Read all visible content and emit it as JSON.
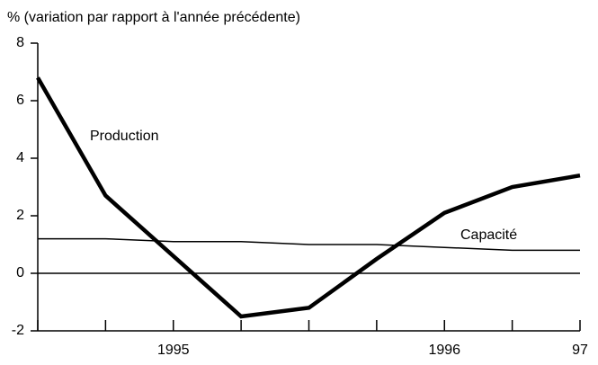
{
  "chart_data": {
    "type": "line",
    "ylabel": "% (variation par rapport à l'année précédente)",
    "categories": [
      null,
      null,
      "1995",
      null,
      null,
      null,
      "1996",
      null,
      "97"
    ],
    "series": [
      {
        "name": "Production",
        "color": "#000000",
        "values": [
          6.8,
          2.7,
          0.6,
          -1.5,
          -1.2,
          0.5,
          2.1,
          3.0,
          3.4
        ]
      },
      {
        "name": "Capacité",
        "color": "#000000",
        "values": [
          1.2,
          1.2,
          1.1,
          1.1,
          1.0,
          1.0,
          0.9,
          0.8,
          0.8
        ]
      }
    ],
    "ylim": [
      -2,
      8
    ],
    "yticks": [
      -2,
      0,
      2,
      4,
      6,
      8
    ]
  }
}
